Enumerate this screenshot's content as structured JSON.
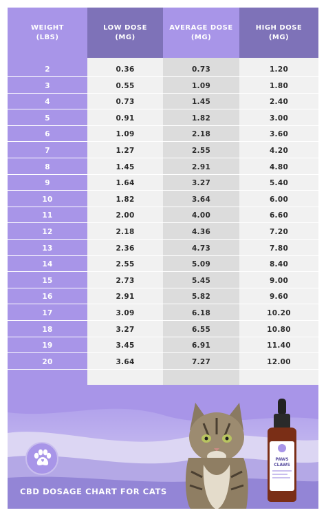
{
  "chart_data": {
    "type": "table",
    "columns": [
      {
        "line1": "WEIGHT",
        "line2": "(LBS)"
      },
      {
        "line1": "LOW DOSE",
        "line2": "(MG)"
      },
      {
        "line1": "AVERAGE DOSE",
        "line2": "(MG)"
      },
      {
        "line1": "HIGH DOSE",
        "line2": "(MG)"
      }
    ],
    "rows": [
      [
        "2",
        "0.36",
        "0.73",
        "1.20"
      ],
      [
        "3",
        "0.55",
        "1.09",
        "1.80"
      ],
      [
        "4",
        "0.73",
        "1.45",
        "2.40"
      ],
      [
        "5",
        "0.91",
        "1.82",
        "3.00"
      ],
      [
        "6",
        "1.09",
        "2.18",
        "3.60"
      ],
      [
        "7",
        "1.27",
        "2.55",
        "4.20"
      ],
      [
        "8",
        "1.45",
        "2.91",
        "4.80"
      ],
      [
        "9",
        "1.64",
        "3.27",
        "5.40"
      ],
      [
        "10",
        "1.82",
        "3.64",
        "6.00"
      ],
      [
        "11",
        "2.00",
        "4.00",
        "6.60"
      ],
      [
        "12",
        "2.18",
        "4.36",
        "7.20"
      ],
      [
        "13",
        "2.36",
        "4.73",
        "7.80"
      ],
      [
        "14",
        "2.55",
        "5.09",
        "8.40"
      ],
      [
        "15",
        "2.73",
        "5.45",
        "9.00"
      ],
      [
        "16",
        "2.91",
        "5.82",
        "9.60"
      ],
      [
        "17",
        "3.09",
        "6.18",
        "10.20"
      ],
      [
        "18",
        "3.27",
        "6.55",
        "10.80"
      ],
      [
        "19",
        "3.45",
        "6.91",
        "11.40"
      ],
      [
        "20",
        "3.64",
        "7.27",
        "12.00"
      ]
    ]
  },
  "footer": {
    "caption": "CBD DOSAGE CHART FOR CATS",
    "brand_line1": "PAWS",
    "brand_line2": "CLAWS",
    "icons": [
      "paw-icon",
      "cat-photo",
      "cbd-bottle"
    ]
  },
  "colors": {
    "lavender": "#a895e8",
    "header_dark": "#7e72b8",
    "cell_light": "#f1f1f1",
    "cell_mid": "#dcdcdc"
  }
}
